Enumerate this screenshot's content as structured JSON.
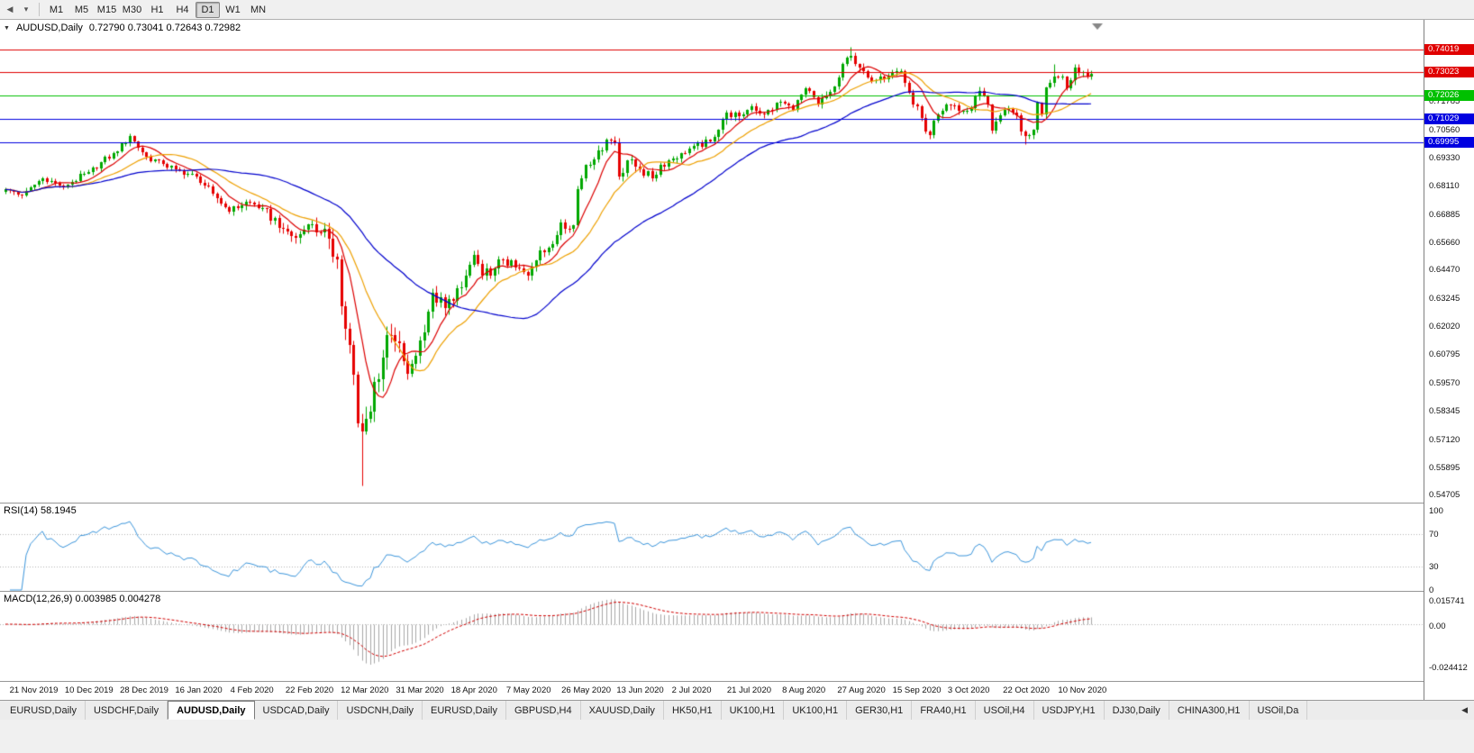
{
  "colors": {
    "toolbar_bg": "#f0f0f0",
    "chart_bg": "#ffffff",
    "axis_border": "#808080",
    "candle_up": "#00a800",
    "candle_down": "#e60000",
    "grid_dotted": "#b4b4b4",
    "shift_marker": "#888888",
    "tag_text": "#ffffff"
  },
  "toolbar": {
    "nav_icons": [
      {
        "name": "charts-nav-icon",
        "glyph": "◀"
      },
      {
        "name": "timeframes-dropdown-icon",
        "glyph": "▾"
      }
    ],
    "timeframes": [
      {
        "label": "M1",
        "active": false
      },
      {
        "label": "M5",
        "active": false
      },
      {
        "label": "M15",
        "active": false
      },
      {
        "label": "M30",
        "active": false
      },
      {
        "label": "H1",
        "active": false
      },
      {
        "label": "H4",
        "active": false
      },
      {
        "label": "D1",
        "active": true
      },
      {
        "label": "W1",
        "active": false
      },
      {
        "label": "MN",
        "active": false
      }
    ]
  },
  "chart_header": {
    "collapse_glyph": "▼",
    "title": "AUDUSD,Daily",
    "ohlc": "0.72790 0.73041 0.72643 0.72982"
  },
  "price_axis": {
    "plain_labels": [
      "0.71785",
      "0.70560",
      "0.69330",
      "0.68110",
      "0.66885",
      "0.65660",
      "0.64470",
      "0.63245",
      "0.62020",
      "0.60795",
      "0.59570",
      "0.58345",
      "0.57120",
      "0.55895",
      "0.54705"
    ],
    "tags": [
      {
        "value": "0.74019",
        "price": 0.74019,
        "color": "#e00000"
      },
      {
        "value": "0.73023",
        "price": 0.73023,
        "color": "#e00000"
      },
      {
        "value": "0.72026",
        "price": 0.72026,
        "color": "#00c000"
      },
      {
        "value": "0.71029",
        "price": 0.71029,
        "color": "#0000e0"
      },
      {
        "value": "0.69995",
        "price": 0.69995,
        "color": "#0000e0"
      }
    ]
  },
  "rsi": {
    "label": "RSI(14) 58.1945",
    "axis_labels": [
      {
        "text": "100",
        "value": 100
      },
      {
        "text": "70",
        "value": 70
      },
      {
        "text": "30",
        "value": 30
      },
      {
        "text": "0",
        "value": 0
      }
    ]
  },
  "macd": {
    "label": "MACD(12,26,9) 0.003985 0.004278",
    "axis_labels": [
      {
        "text": "0.015741",
        "value": 0.015741
      },
      {
        "text": "0.00",
        "value": 0
      },
      {
        "text": "-0.024412",
        "value": -0.024412
      }
    ]
  },
  "tabbar": {
    "scroll_arrow_glyph": "◀",
    "tabs": [
      {
        "label": "EURUSD,Daily",
        "active": false
      },
      {
        "label": "USDCHF,Daily",
        "active": false
      },
      {
        "label": "AUDUSD,Daily",
        "active": true
      },
      {
        "label": "USDCAD,Daily",
        "active": false
      },
      {
        "label": "USDCNH,Daily",
        "active": false
      },
      {
        "label": "EURUSD,Daily",
        "active": false
      },
      {
        "label": "GBPUSD,H4",
        "active": false
      },
      {
        "label": "XAUUSD,Daily",
        "active": false
      },
      {
        "label": "HK50,H1",
        "active": false
      },
      {
        "label": "UK100,H1",
        "active": false
      },
      {
        "label": "UK100,H1",
        "active": false
      },
      {
        "label": "GER30,H1",
        "active": false
      },
      {
        "label": "FRA40,H1",
        "active": false
      },
      {
        "label": "USOil,H4",
        "active": false
      },
      {
        "label": "USDJPY,H1",
        "active": false
      },
      {
        "label": "DJ30,Daily",
        "active": false
      },
      {
        "label": "CHINA300,H1",
        "active": false
      },
      {
        "label": "USOil,Da",
        "active": false
      }
    ]
  },
  "chart_data": {
    "type": "candlestick",
    "symbol": "AUDUSD",
    "timeframe": "Daily",
    "title": "AUDUSD,Daily",
    "current_ohlc": {
      "open": 0.7279,
      "high": 0.73041,
      "low": 0.72643,
      "close": 0.72982
    },
    "y_axis_range": [
      0.54366,
      0.75308
    ],
    "candle_count": 263,
    "x_tick_labels": [
      "21 Nov 2019",
      "10 Dec 2019",
      "28 Dec 2019",
      "16 Jan 2020",
      "4 Feb 2020",
      "22 Feb 2020",
      "12 Mar 2020",
      "31 Mar 2020",
      "18 Apr 2020",
      "7 May 2020",
      "26 May 2020",
      "13 Jun 2020",
      "2 Jul 2020",
      "21 Jul 2020",
      "8 Aug 2020",
      "27 Aug 2020",
      "15 Sep 2020",
      "3 Oct 2020",
      "22 Oct 2020",
      "10 Nov 2020"
    ],
    "close_anchors": [
      [
        0,
        0.6795
      ],
      [
        4,
        0.6768
      ],
      [
        9,
        0.6845
      ],
      [
        14,
        0.6806
      ],
      [
        20,
        0.6872
      ],
      [
        27,
        0.6962
      ],
      [
        30,
        0.7025
      ],
      [
        34,
        0.6935
      ],
      [
        38,
        0.6905
      ],
      [
        41,
        0.6882
      ],
      [
        46,
        0.6852
      ],
      [
        50,
        0.6776
      ],
      [
        54,
        0.67
      ],
      [
        58,
        0.6742
      ],
      [
        62,
        0.6714
      ],
      [
        67,
        0.6624
      ],
      [
        70,
        0.6585
      ],
      [
        73,
        0.6642
      ],
      [
        76,
        0.661
      ],
      [
        78,
        0.658
      ],
      [
        79,
        0.6505
      ],
      [
        80,
        0.649
      ],
      [
        81,
        0.629
      ],
      [
        82,
        0.619
      ],
      [
        83,
        0.612
      ],
      [
        84,
        0.599
      ],
      [
        85,
        0.578
      ],
      [
        86,
        0.5744
      ],
      [
        87,
        0.58
      ],
      [
        88,
        0.583
      ],
      [
        89,
        0.596
      ],
      [
        91,
        0.6065
      ],
      [
        92,
        0.6165
      ],
      [
        94,
        0.6135
      ],
      [
        96,
        0.605
      ],
      [
        97,
        0.5995
      ],
      [
        100,
        0.614
      ],
      [
        103,
        0.6345
      ],
      [
        106,
        0.628
      ],
      [
        107,
        0.632
      ],
      [
        110,
        0.6372
      ],
      [
        113,
        0.651
      ],
      [
        115,
        0.6422
      ],
      [
        118,
        0.6452
      ],
      [
        120,
        0.649
      ],
      [
        123,
        0.6455
      ],
      [
        126,
        0.6422
      ],
      [
        129,
        0.653
      ],
      [
        132,
        0.6556
      ],
      [
        134,
        0.665
      ],
      [
        137,
        0.664
      ],
      [
        138,
        0.6798
      ],
      [
        140,
        0.69
      ],
      [
        143,
        0.6966
      ],
      [
        145,
        0.701
      ],
      [
        147,
        0.7
      ],
      [
        148,
        0.6852
      ],
      [
        150,
        0.692
      ],
      [
        153,
        0.6882
      ],
      [
        156,
        0.6842
      ],
      [
        158,
        0.6902
      ],
      [
        160,
        0.6922
      ],
      [
        163,
        0.6952
      ],
      [
        166,
        0.6982
      ],
      [
        170,
        0.7002
      ],
      [
        174,
        0.713
      ],
      [
        177,
        0.7112
      ],
      [
        180,
        0.7155
      ],
      [
        183,
        0.7122
      ],
      [
        187,
        0.7176
      ],
      [
        190,
        0.7142
      ],
      [
        193,
        0.7232
      ],
      [
        196,
        0.7162
      ],
      [
        200,
        0.724
      ],
      [
        203,
        0.7366
      ],
      [
        204,
        0.7376
      ],
      [
        206,
        0.7322
      ],
      [
        208,
        0.7282
      ],
      [
        211,
        0.7286
      ],
      [
        214,
        0.7302
      ],
      [
        216,
        0.731
      ],
      [
        218,
        0.7216
      ],
      [
        221,
        0.7105
      ],
      [
        222,
        0.7048
      ],
      [
        223,
        0.7032
      ],
      [
        225,
        0.7122
      ],
      [
        227,
        0.7163
      ],
      [
        229,
        0.716
      ],
      [
        231,
        0.7136
      ],
      [
        233,
        0.7146
      ],
      [
        235,
        0.7222
      ],
      [
        237,
        0.7162
      ],
      [
        238,
        0.7052
      ],
      [
        240,
        0.7118
      ],
      [
        241,
        0.714
      ],
      [
        243,
        0.7128
      ],
      [
        244,
        0.7116
      ],
      [
        245,
        0.7046
      ],
      [
        246,
        0.7026
      ],
      [
        247,
        0.703
      ],
      [
        248,
        0.7054
      ],
      [
        249,
        0.717
      ],
      [
        250,
        0.7122
      ],
      [
        251,
        0.7238
      ],
      [
        252,
        0.7258
      ],
      [
        253,
        0.7286
      ],
      [
        254,
        0.7284
      ],
      [
        255,
        0.7285
      ],
      [
        256,
        0.7232
      ],
      [
        257,
        0.7268
      ],
      [
        258,
        0.7323
      ],
      [
        259,
        0.73
      ],
      [
        260,
        0.7306
      ],
      [
        261,
        0.7286
      ],
      [
        262,
        0.7298
      ]
    ],
    "volatility_anchors": [
      [
        0,
        0.002
      ],
      [
        40,
        0.0022
      ],
      [
        60,
        0.003
      ],
      [
        75,
        0.005
      ],
      [
        80,
        0.0085
      ],
      [
        90,
        0.0085
      ],
      [
        100,
        0.006
      ],
      [
        110,
        0.0045
      ],
      [
        125,
        0.0032
      ],
      [
        145,
        0.0036
      ],
      [
        165,
        0.0026
      ],
      [
        200,
        0.003
      ],
      [
        220,
        0.0032
      ],
      [
        245,
        0.003
      ],
      [
        262,
        0.0026
      ]
    ],
    "wick_overrides": [
      {
        "i": 86,
        "low": 0.551
      },
      {
        "i": 204,
        "high": 0.7414
      },
      {
        "i": 246,
        "low": 0.699
      },
      {
        "i": 253,
        "high": 0.734
      }
    ],
    "horizontal_levels": [
      {
        "price": 0.74019,
        "color": "#e00000"
      },
      {
        "price": 0.73023,
        "color": "#e00000"
      },
      {
        "price": 0.72026,
        "color": "#00c000"
      },
      {
        "price": 0.71029,
        "color": "#0000e0"
      },
      {
        "price": 0.69995,
        "color": "#0000e0"
      }
    ],
    "moving_averages": [
      {
        "period": 8,
        "color": "#dc0000"
      },
      {
        "period": 18,
        "color": "#eea000"
      },
      {
        "period": 45,
        "color": "#0000cd"
      }
    ],
    "indicators": {
      "rsi": {
        "period": 14,
        "last": 58.1945,
        "line_color": "#3c96dc",
        "levels": [
          70,
          30
        ],
        "range": [
          0,
          100
        ]
      },
      "macd": {
        "fast": 12,
        "slow": 26,
        "signal": 9,
        "last": 0.003985,
        "signal_last": 0.004278,
        "hist_color": "#a8a8a8",
        "signal_color": "#d20000"
      }
    }
  }
}
